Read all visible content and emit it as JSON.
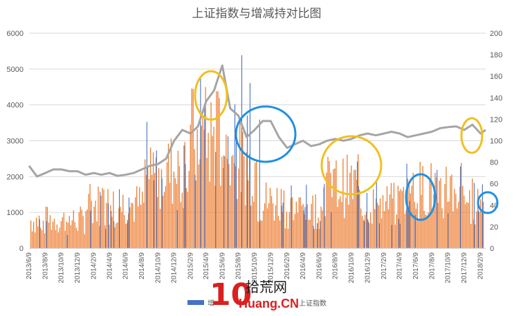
{
  "chart_data": {
    "type": "bar",
    "title": "上证指数与增减持对比图",
    "left_axis": {
      "min": 0,
      "max": 6000,
      "ticks": [
        "0",
        "1000",
        "2000",
        "3000",
        "4000",
        "5000",
        "6000"
      ]
    },
    "right_axis": {
      "min": 0,
      "max": 200,
      "ticks": [
        "0",
        "20",
        "40",
        "60",
        "80",
        "100",
        "120",
        "140",
        "160",
        "180",
        "200"
      ]
    },
    "x_tick_labels": [
      "2013/6/9",
      "2013/8/9",
      "2013/10/9",
      "2013/12/9",
      "2014/2/9",
      "2014/4/9",
      "2014/6/9",
      "2014/8/9",
      "2014/10/9",
      "2014/12/9",
      "2015/2/9",
      "2015/4/9",
      "2015/6/9",
      "2015/8/9",
      "2015/10/9",
      "2015/12/9",
      "2016/2/9",
      "2016/4/9",
      "2016/6/9",
      "2016/8/9",
      "2016/10/9",
      "2016/12/9",
      "2017/2/9",
      "2017/4/9",
      "2017/6/9",
      "2017/8/9",
      "2017/10/9",
      "2017/12/9",
      "2018/2/9"
    ],
    "grid": true,
    "legend_position": "bottom",
    "series": [
      {
        "name": "增",
        "axis": "left",
        "kind": "bar",
        "color": "#4472c4"
      },
      {
        "kind": "bar",
        "axis": "left",
        "color": "#ed7d31"
      },
      {
        "name": "上证指数",
        "axis": "right",
        "kind": "line",
        "color": "#a5a5a5",
        "points": [
          [
            "2013/6/9",
            2300
          ],
          [
            "2013/7/9",
            2000
          ],
          [
            "2013/8/9",
            2100
          ],
          [
            "2013/9/9",
            2200
          ],
          [
            "2013/10/9",
            2200
          ],
          [
            "2013/11/9",
            2150
          ],
          [
            "2013/12/9",
            2150
          ],
          [
            "2014/1/9",
            2050
          ],
          [
            "2014/2/9",
            2100
          ],
          [
            "2014/3/9",
            2050
          ],
          [
            "2014/4/9",
            2100
          ],
          [
            "2014/5/9",
            2020
          ],
          [
            "2014/6/9",
            2050
          ],
          [
            "2014/7/9",
            2100
          ],
          [
            "2014/8/9",
            2200
          ],
          [
            "2014/9/9",
            2300
          ],
          [
            "2014/10/9",
            2350
          ],
          [
            "2014/11/9",
            2500
          ],
          [
            "2014/12/9",
            3000
          ],
          [
            "2015/1/9",
            3300
          ],
          [
            "2015/2/9",
            3200
          ],
          [
            "2015/3/9",
            3400
          ],
          [
            "2015/4/9",
            4100
          ],
          [
            "2015/5/9",
            4400
          ],
          [
            "2015/6/9",
            5100
          ],
          [
            "2015/7/9",
            3900
          ],
          [
            "2015/8/9",
            3700
          ],
          [
            "2015/9/9",
            3100
          ],
          [
            "2015/10/9",
            3300
          ],
          [
            "2015/11/9",
            3550
          ],
          [
            "2015/12/9",
            3550
          ],
          [
            "2016/1/9",
            3100
          ],
          [
            "2016/2/9",
            2800
          ],
          [
            "2016/3/9",
            2900
          ],
          [
            "2016/4/9",
            3000
          ],
          [
            "2016/5/9",
            2850
          ],
          [
            "2016/6/9",
            2900
          ],
          [
            "2016/7/9",
            3000
          ],
          [
            "2016/8/9",
            3050
          ],
          [
            "2016/9/9",
            3000
          ],
          [
            "2016/10/9",
            3050
          ],
          [
            "2016/11/9",
            3150
          ],
          [
            "2016/12/9",
            3200
          ],
          [
            "2017/1/9",
            3150
          ],
          [
            "2017/2/9",
            3200
          ],
          [
            "2017/3/9",
            3250
          ],
          [
            "2017/4/9",
            3200
          ],
          [
            "2017/5/9",
            3100
          ],
          [
            "2017/6/9",
            3150
          ],
          [
            "2017/7/9",
            3200
          ],
          [
            "2017/8/9",
            3250
          ],
          [
            "2017/9/9",
            3350
          ],
          [
            "2017/10/9",
            3380
          ],
          [
            "2017/11/9",
            3400
          ],
          [
            "2017/12/9",
            3300
          ],
          [
            "2018/1/9",
            3450
          ],
          [
            "2018/2/9",
            3200
          ],
          [
            "2018/2/28",
            3300
          ]
        ]
      }
    ],
    "annotations": [
      {
        "shape": "ellipse",
        "color": "#f0c020",
        "near": "2015/4"
      },
      {
        "shape": "ellipse",
        "color": "#2090e0",
        "near": "2015/10-2015/12"
      },
      {
        "shape": "ellipse",
        "color": "#f0c020",
        "near": "2016/9-2016/11"
      },
      {
        "shape": "ellipse",
        "color": "#2090e0",
        "near": "2017/6"
      },
      {
        "shape": "ellipse",
        "color": "#f0c020",
        "near": "2017/12"
      },
      {
        "shape": "ellipse",
        "color": "#2090e0",
        "near": "2018/2"
      }
    ]
  },
  "watermark": {
    "number": "10",
    "chinese": "拾荒网",
    "latin": "Huang.CN"
  }
}
